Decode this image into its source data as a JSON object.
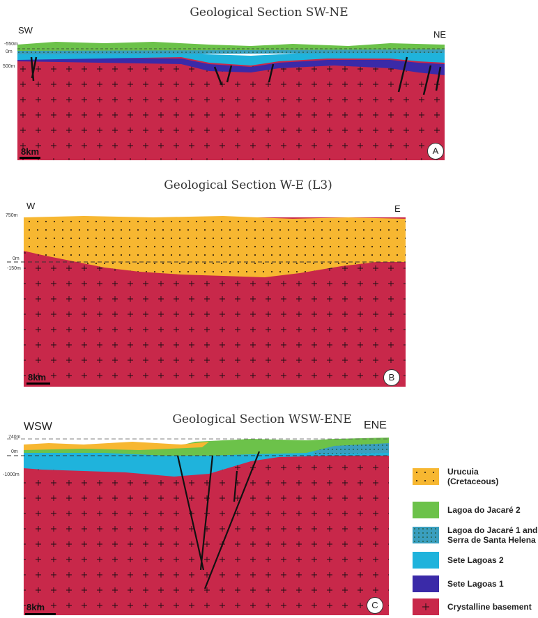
{
  "sections": [
    {
      "title": "Geological Section SW-NE",
      "left_label": "SW",
      "right_label": "NE",
      "depth_labels": [
        "-550m",
        "0m",
        "500m"
      ],
      "scale": "8km",
      "badge": "A"
    },
    {
      "title": "Geological Section W-E (L3)",
      "left_label": "W",
      "right_label": "E",
      "depth_labels": [
        "750m",
        "0m",
        "-150m"
      ],
      "scale": "8km",
      "badge": "B"
    },
    {
      "title": "Geological Section WSW-ENE",
      "left_label": "WSW",
      "right_label": "ENE",
      "depth_labels": [
        "740m",
        "0m",
        "-1000m"
      ],
      "scale": "8km",
      "badge": "C"
    }
  ],
  "legend": [
    {
      "label": "Urucuia\n(Cretaceous)",
      "color": "#f7b731"
    },
    {
      "label": "Lagoa do Jacaré 2",
      "color": "#6cc24a"
    },
    {
      "label": "Lagoa do Jacaré 1 and\nSerra de Santa Helena",
      "color": "#3a9fbf"
    },
    {
      "label": "Sete Lagoas 2",
      "color": "#1fb3dc"
    },
    {
      "label": "Sete Lagoas 1",
      "color": "#3a2aa8"
    },
    {
      "label": "Crystalline basement",
      "color": "#c8284a"
    }
  ]
}
